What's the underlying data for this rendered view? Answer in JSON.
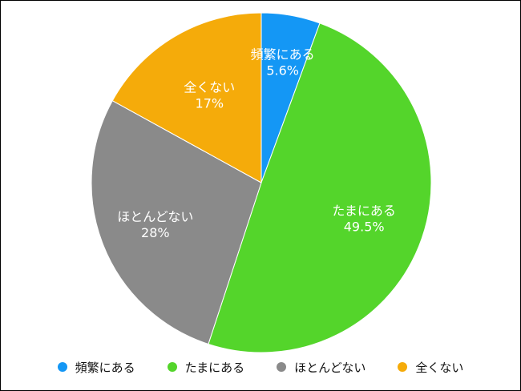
{
  "chart_data": {
    "type": "pie",
    "title": "",
    "slices": [
      {
        "label": "頻繁にある",
        "value": 5.6,
        "display": "5.6%",
        "color": "#1497f5"
      },
      {
        "label": "たまにある",
        "value": 49.5,
        "display": "49.5%",
        "color": "#54d52b"
      },
      {
        "label": "ほとんどない",
        "value": 28,
        "display": "28%",
        "color": "#8a8a8a"
      },
      {
        "label": "全くない",
        "value": 17,
        "display": "17%",
        "color": "#f5ab0a"
      }
    ],
    "legend_position": "bottom"
  }
}
